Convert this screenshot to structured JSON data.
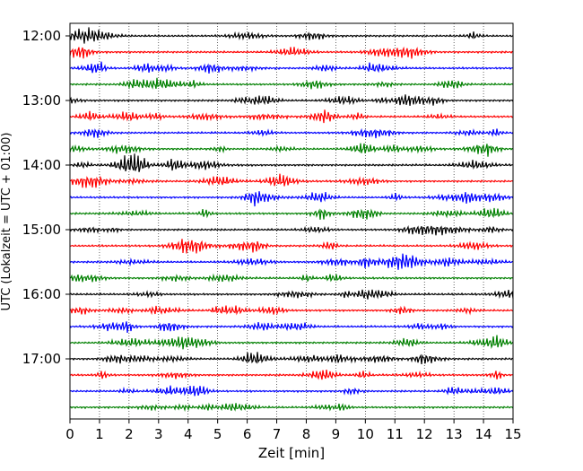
{
  "chart_data": {
    "type": "line",
    "title": "",
    "xlabel": "Zeit  [min]",
    "ylabel": "UTC (Lokalzeit = UTC + 01:00)",
    "xlim": [
      0,
      15
    ],
    "x_ticks": [
      "0",
      "1",
      "2",
      "3",
      "4",
      "5",
      "6",
      "7",
      "8",
      "9",
      "10",
      "11",
      "12",
      "13",
      "14",
      "15"
    ],
    "y_ticks": [
      "12:00",
      "13:00",
      "14:00",
      "15:00",
      "16:00",
      "17:00"
    ],
    "grid": "vertical dotted at each minute",
    "trace_interval_min": 15,
    "trace_count": 24,
    "trace_start": "12:00",
    "trace_colors": [
      "#000000",
      "#ff0000",
      "#0000ff",
      "#008000"
    ],
    "traces": [
      {
        "start": "12:00",
        "color": "#000000"
      },
      {
        "start": "12:15",
        "color": "#ff0000"
      },
      {
        "start": "12:30",
        "color": "#0000ff"
      },
      {
        "start": "12:45",
        "color": "#008000"
      },
      {
        "start": "13:00",
        "color": "#000000"
      },
      {
        "start": "13:15",
        "color": "#ff0000"
      },
      {
        "start": "13:30",
        "color": "#0000ff"
      },
      {
        "start": "13:45",
        "color": "#008000"
      },
      {
        "start": "14:00",
        "color": "#000000"
      },
      {
        "start": "14:15",
        "color": "#ff0000"
      },
      {
        "start": "14:30",
        "color": "#0000ff"
      },
      {
        "start": "14:45",
        "color": "#008000"
      },
      {
        "start": "15:00",
        "color": "#000000"
      },
      {
        "start": "15:15",
        "color": "#ff0000"
      },
      {
        "start": "15:30",
        "color": "#0000ff"
      },
      {
        "start": "15:45",
        "color": "#008000"
      },
      {
        "start": "16:00",
        "color": "#000000"
      },
      {
        "start": "16:15",
        "color": "#ff0000"
      },
      {
        "start": "16:30",
        "color": "#0000ff"
      },
      {
        "start": "16:45",
        "color": "#008000"
      },
      {
        "start": "17:00",
        "color": "#000000"
      },
      {
        "start": "17:15",
        "color": "#ff0000"
      },
      {
        "start": "17:30",
        "color": "#0000ff"
      },
      {
        "start": "17:45",
        "color": "#008000"
      }
    ]
  }
}
